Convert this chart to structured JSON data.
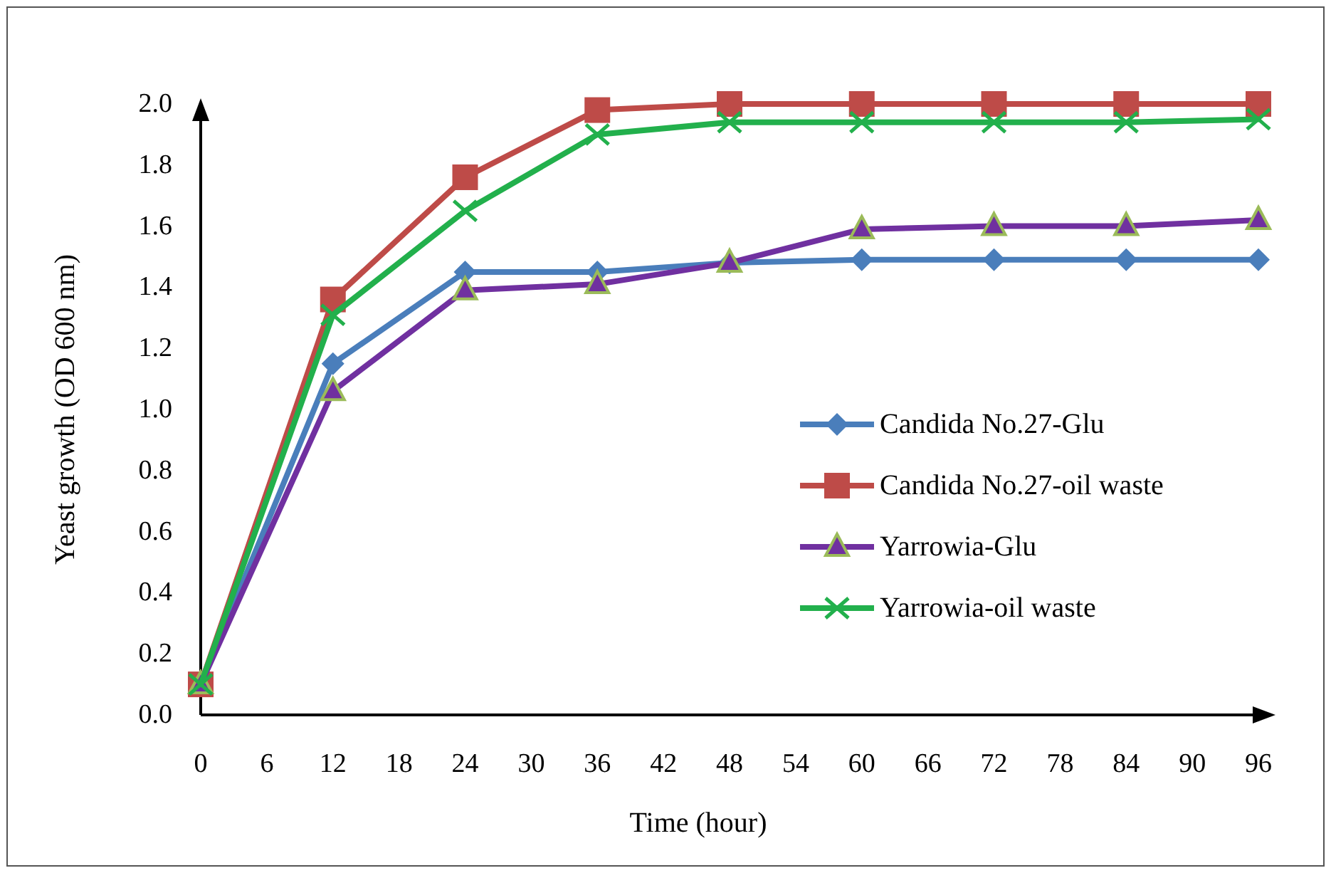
{
  "chart_data": {
    "type": "line",
    "xlabel": "Time (hour)",
    "ylabel": "Yeast growth (OD 600 nm)",
    "x": [
      0,
      12,
      24,
      36,
      48,
      60,
      72,
      84,
      96
    ],
    "xlim": [
      0,
      96
    ],
    "xticks": [
      0,
      6,
      12,
      18,
      24,
      30,
      36,
      42,
      48,
      54,
      60,
      66,
      72,
      78,
      84,
      90,
      96
    ],
    "ylim": [
      0,
      2.0
    ],
    "yticks": [
      {
        "value": 0,
        "label": "0.0"
      },
      0.2,
      0.4,
      0.6,
      0.8,
      {
        "value": 1,
        "label": "1.0"
      },
      1.2,
      1.4,
      1.6,
      1.8,
      {
        "value": 2,
        "label": "2.0"
      }
    ],
    "grid": false,
    "legend": "right",
    "line_style": "solid",
    "series": [
      {
        "name": "Candida No.27-Glu",
        "color": "#4a7ebb",
        "marker": "diamond",
        "values": [
          0.1,
          1.15,
          1.45,
          1.45,
          1.48,
          1.49,
          1.49,
          1.49,
          1.49
        ]
      },
      {
        "name": "Candida No.27-oil waste",
        "color": "#be4b48",
        "marker": "square",
        "values": [
          0.1,
          1.36,
          1.76,
          1.98,
          2.0,
          2.0,
          2.0,
          2.0,
          2.0
        ]
      },
      {
        "name": "Yarrowia-Glu",
        "color": "#7030a0",
        "marker": "triangle",
        "values": [
          0.1,
          1.06,
          1.39,
          1.41,
          1.48,
          1.59,
          1.6,
          1.6,
          1.62
        ]
      },
      {
        "name": "Yarrowia-oil waste",
        "color": "#22b04c",
        "marker": "cross",
        "values": [
          0.1,
          1.31,
          1.65,
          1.9,
          1.94,
          1.94,
          1.94,
          1.94,
          1.95
        ]
      }
    ]
  }
}
